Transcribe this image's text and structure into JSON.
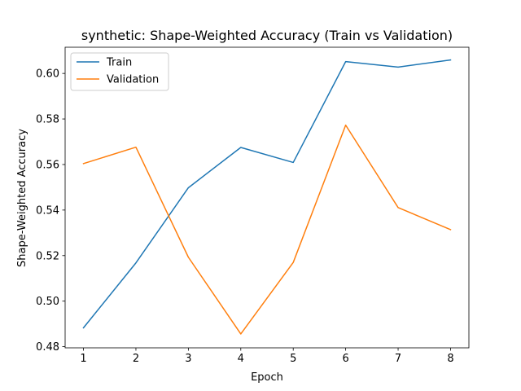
{
  "chart_data": {
    "type": "line",
    "title": "synthetic: Shape-Weighted Accuracy (Train vs Validation)",
    "xlabel": "Epoch",
    "ylabel": "Shape-Weighted Accuracy",
    "x": [
      1,
      2,
      3,
      4,
      5,
      6,
      7,
      8
    ],
    "xlim": [
      0.65,
      8.35
    ],
    "ylim": [
      0.4795,
      0.6115
    ],
    "xticks": [
      1,
      2,
      3,
      4,
      5,
      6,
      7,
      8
    ],
    "yticks": [
      0.48,
      0.5,
      0.52,
      0.54,
      0.56,
      0.58,
      0.6
    ],
    "ytick_labels": [
      "0.48",
      "0.50",
      "0.52",
      "0.54",
      "0.56",
      "0.58",
      "0.60"
    ],
    "grid": false,
    "legend_position": "upper-left",
    "series": [
      {
        "name": "Train",
        "color": "#1f77b4",
        "values": [
          0.4883,
          0.5168,
          0.5498,
          0.5675,
          0.5609,
          0.6052,
          0.6028,
          0.6059
        ]
      },
      {
        "name": "Validation",
        "color": "#ff7f0e",
        "values": [
          0.5604,
          0.5676,
          0.5193,
          0.4856,
          0.517,
          0.5773,
          0.5411,
          0.5314
        ]
      }
    ]
  }
}
